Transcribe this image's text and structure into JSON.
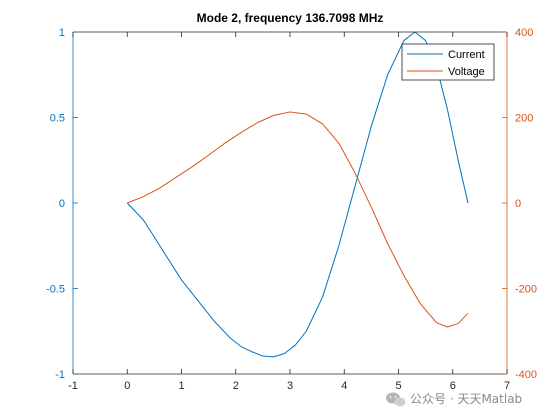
{
  "chart_data": {
    "type": "line",
    "title": "Mode 2, frequency 136.7098 MHz",
    "xlim": [
      -1,
      7
    ],
    "x_ticks": [
      -1,
      0,
      1,
      2,
      3,
      4,
      5,
      6,
      7
    ],
    "left_axis": {
      "ylim": [
        -1,
        1
      ],
      "ticks": [
        -1,
        -0.5,
        0,
        0.5,
        1
      ],
      "color": "#0072BD"
    },
    "right_axis": {
      "ylim": [
        -400,
        400
      ],
      "ticks": [
        -400,
        -200,
        0,
        200,
        400
      ],
      "color": "#D95319"
    },
    "legend_position": "top-right",
    "grid": false,
    "series": [
      {
        "name": "Current",
        "axis": "left",
        "color": "#0072BD",
        "x": [
          0,
          0.3,
          0.6,
          1.0,
          1.3,
          1.6,
          1.9,
          2.1,
          2.3,
          2.5,
          2.7,
          2.9,
          3.1,
          3.3,
          3.6,
          3.9,
          4.2,
          4.5,
          4.8,
          5.1,
          5.3,
          5.5,
          5.7,
          5.9,
          6.1,
          6.28
        ],
        "values": [
          0,
          -0.1,
          -0.25,
          -0.45,
          -0.57,
          -0.69,
          -0.79,
          -0.84,
          -0.87,
          -0.895,
          -0.9,
          -0.88,
          -0.83,
          -0.75,
          -0.55,
          -0.25,
          0.1,
          0.45,
          0.75,
          0.95,
          1.0,
          0.95,
          0.8,
          0.55,
          0.25,
          0.0
        ]
      },
      {
        "name": "Voltage",
        "axis": "right",
        "color": "#D95319",
        "x": [
          0,
          0.3,
          0.6,
          0.9,
          1.2,
          1.5,
          1.8,
          2.1,
          2.4,
          2.7,
          3.0,
          3.3,
          3.6,
          3.9,
          4.2,
          4.5,
          4.8,
          5.1,
          5.4,
          5.7,
          5.9,
          6.1,
          6.28
        ],
        "values": [
          0,
          15,
          35,
          60,
          85,
          112,
          140,
          165,
          188,
          205,
          213,
          208,
          185,
          140,
          70,
          -10,
          -95,
          -170,
          -235,
          -280,
          -290,
          -282,
          -258
        ]
      }
    ]
  },
  "watermark": {
    "text": "公众号 · 天天Matlab",
    "icon": "wechat-icon"
  }
}
